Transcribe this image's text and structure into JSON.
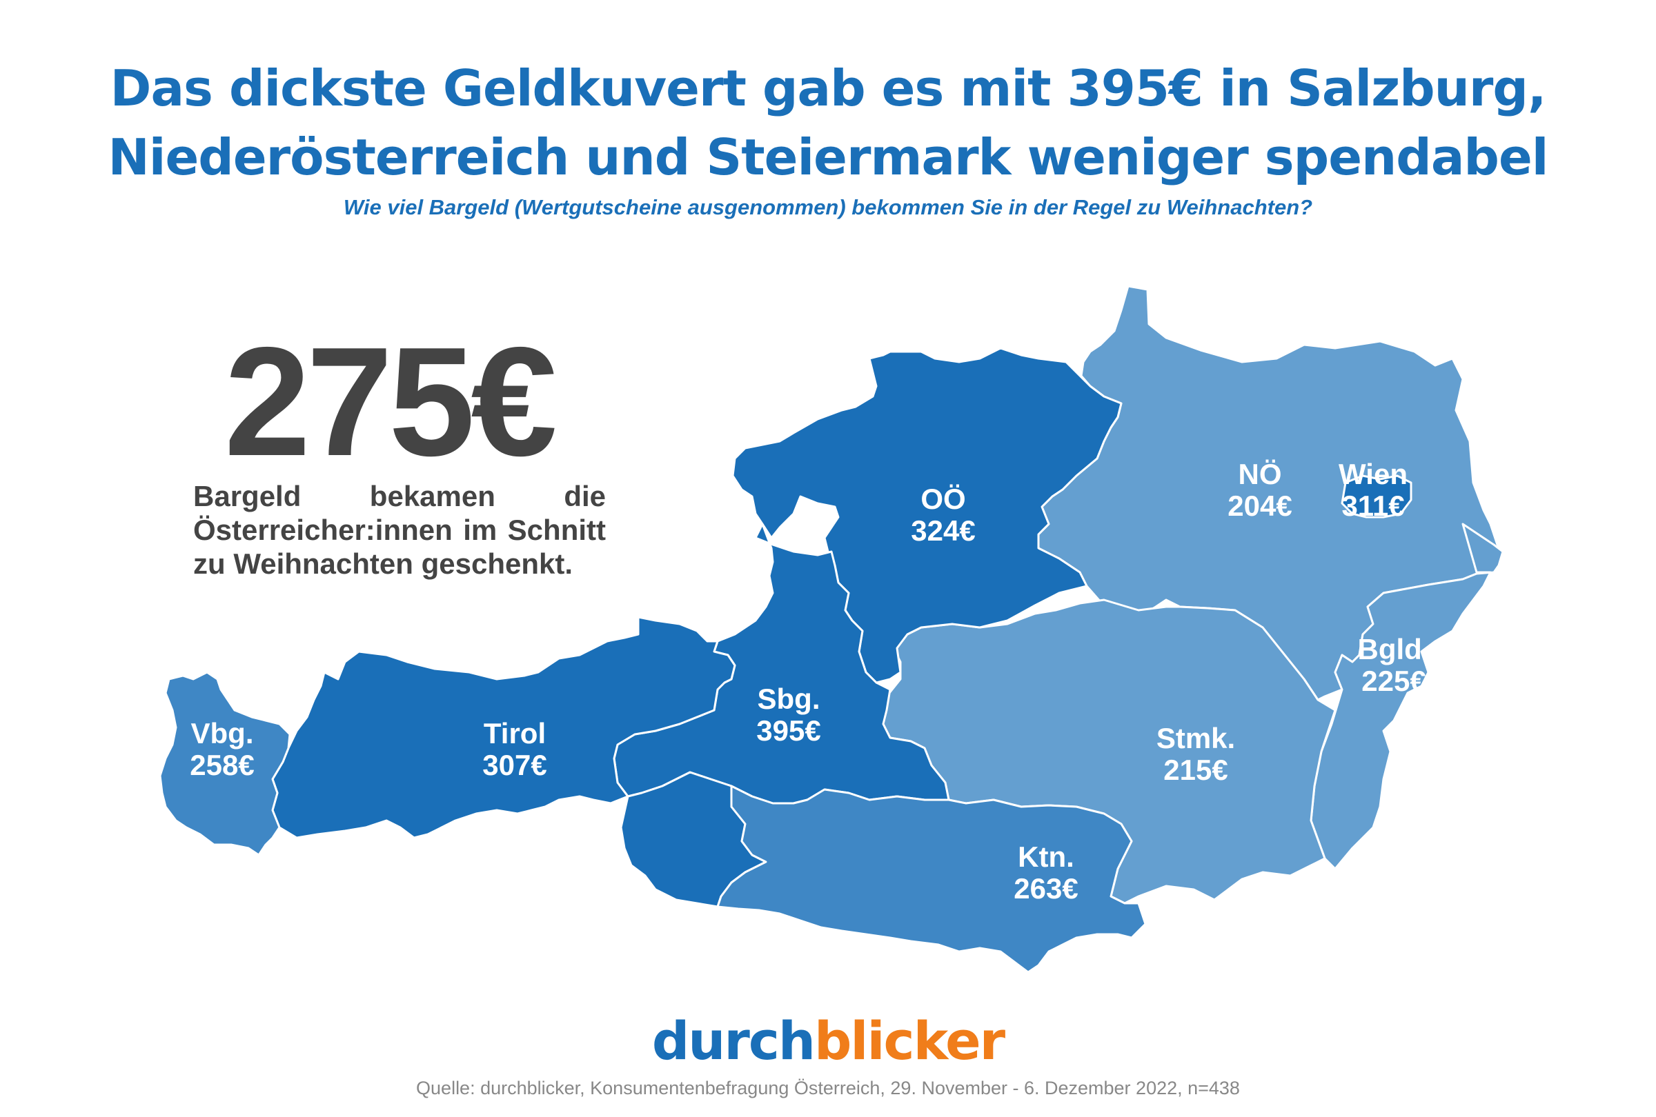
{
  "header": {
    "title_line1": "Das dickste Geldkuvert gab es mit 395€ in Salzburg,",
    "title_line2": "Niederösterreich und Steiermark weniger spendabel",
    "subtitle": "Wie viel Bargeld (Wertgutscheine ausgenommen) bekommen Sie in der Regel zu Weihnachten?"
  },
  "highlight": {
    "value": "275€",
    "caption": "Bargeld bekamen die Österreicher:innen im Schnitt zu Weihnachten geschenkt."
  },
  "colors": {
    "dark_blue": "#1a6fb8",
    "medium_blue": "#3f87c5",
    "light_blue": "#649fd0",
    "orange": "#f07d1a",
    "text_gray": "#444444"
  },
  "map": {
    "regions": [
      {
        "name": "Vbg.",
        "value": "258€",
        "fill": "#3f87c5"
      },
      {
        "name": "Tirol",
        "value": "307€",
        "fill": "#1a6fb8"
      },
      {
        "name": "Sbg.",
        "value": "395€",
        "fill": "#1a6fb8"
      },
      {
        "name": "OÖ",
        "value": "324€",
        "fill": "#1a6fb8"
      },
      {
        "name": "NÖ",
        "value": "204€",
        "fill": "#649fd0"
      },
      {
        "name": "Wien",
        "value": "311€",
        "fill": "#1a6fb8"
      },
      {
        "name": "Bgld.",
        "value": "225€",
        "fill": "#649fd0"
      },
      {
        "name": "Stmk.",
        "value": "215€",
        "fill": "#649fd0"
      },
      {
        "name": "Ktn.",
        "value": "263€",
        "fill": "#3f87c5"
      }
    ]
  },
  "footer": {
    "logo_part1": "durch",
    "logo_part2": "blicker",
    "source": "Quelle: durchblicker, Konsumentenbefragung Österreich,  29. November - 6. Dezember 2022, n=438"
  }
}
